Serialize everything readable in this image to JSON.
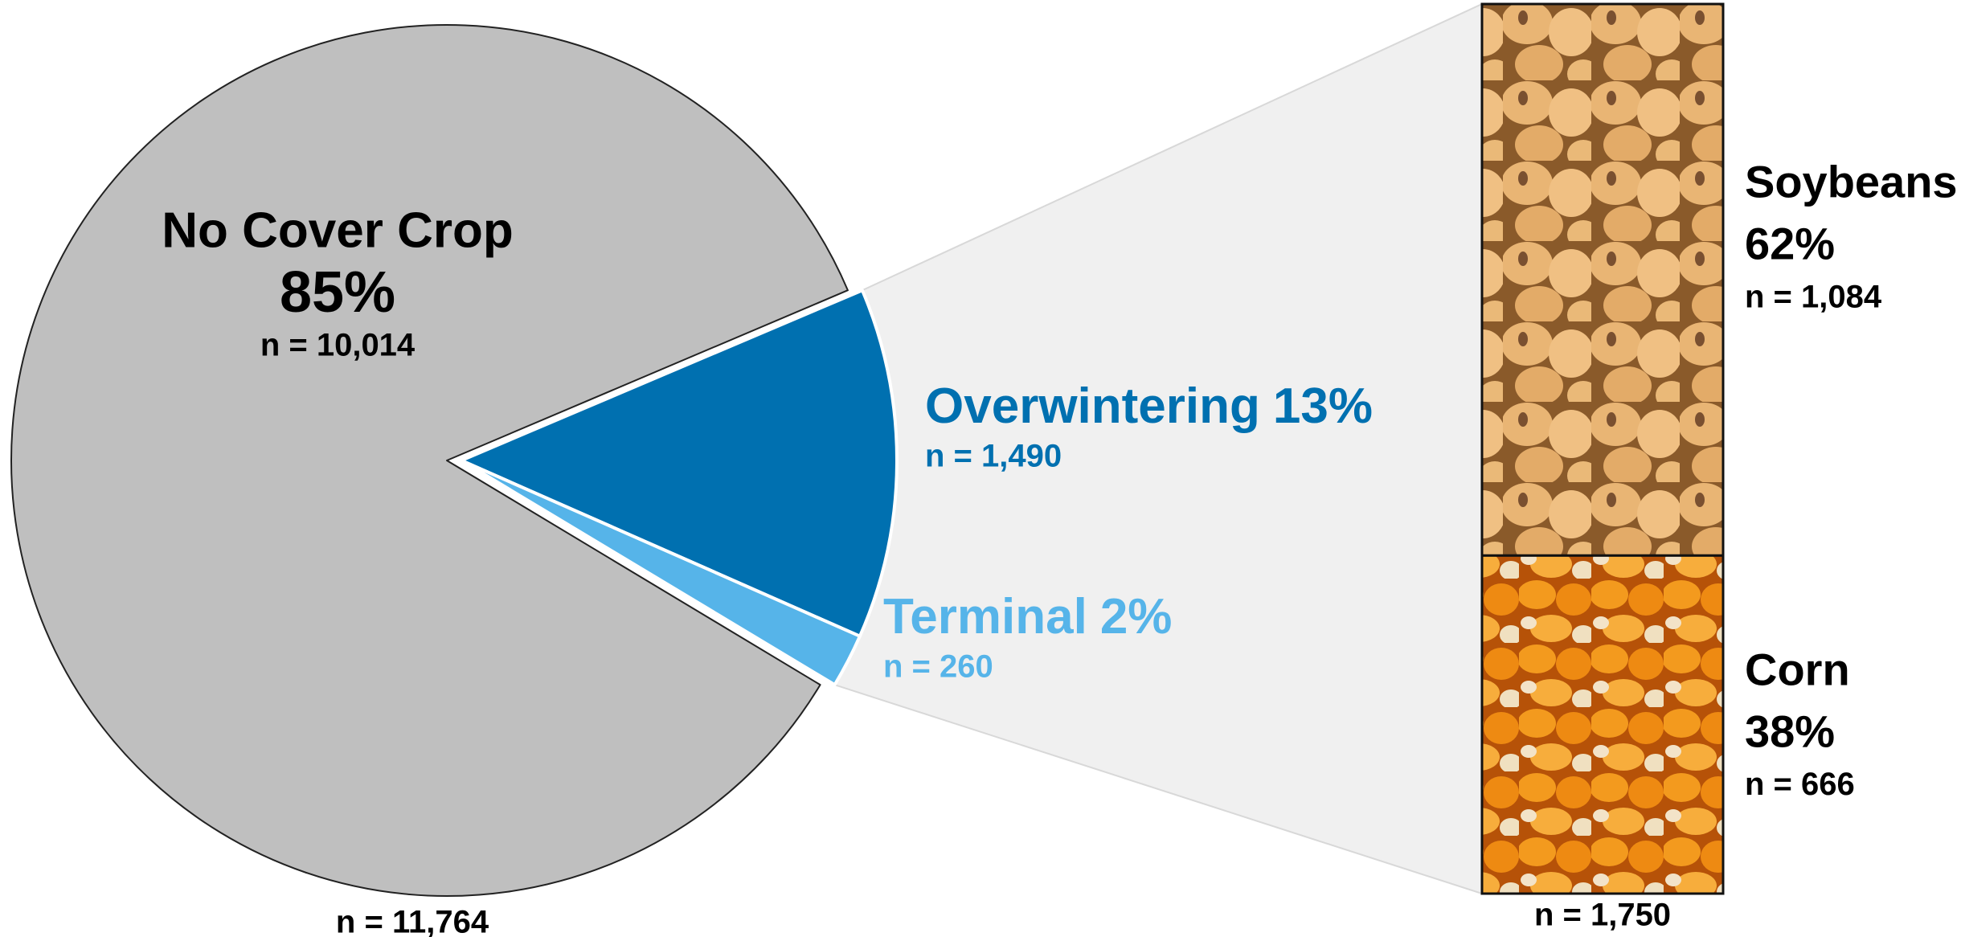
{
  "chart_data": [
    {
      "type": "pie",
      "categories": [
        "No Cover Crop",
        "Overwintering",
        "Terminal"
      ],
      "values": [
        85,
        13,
        2
      ],
      "value_labels": [
        "85%",
        "13%",
        "2%"
      ],
      "count_labels": [
        "n = 10,014",
        "n = 1,490",
        "n = 260"
      ],
      "colors": [
        "#bfbfbf",
        "#0070b0",
        "#56b4e9"
      ],
      "total_label": "n = 11,764"
    },
    {
      "type": "bar",
      "categories": [
        "Soybeans",
        "Corn"
      ],
      "values": [
        62,
        38
      ],
      "value_labels": [
        "62%",
        "38%"
      ],
      "count_labels": [
        "n = 1,084",
        "n = 666"
      ],
      "total_label": "n = 1,750"
    }
  ]
}
